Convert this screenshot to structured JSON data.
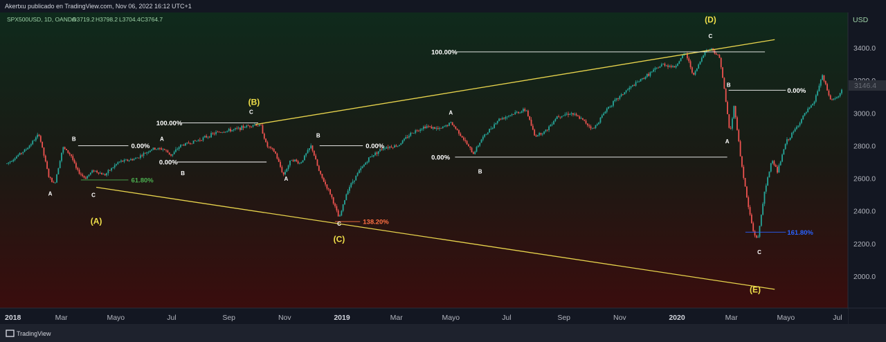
{
  "header": {
    "published": "Akertxu publicado en TradingView.com, Nov 06, 2022 16:12 UTC+1",
    "symbol": "SPX500USD, 1D, OANDA",
    "open": "O3719.2",
    "high": "H3798.2",
    "low": "L3704.4",
    "close": "C3764.7"
  },
  "price_axis": {
    "currency": "USD",
    "last_price": "3146.4"
  },
  "footer": {
    "brand": "TradingView"
  },
  "colors": {
    "up": "#26a69a",
    "down": "#ef5350",
    "wave_line": "#e8d44d",
    "fib_white": "#ffffff",
    "fib_green": "#4caf50",
    "fib_orange": "#ff7043",
    "fib_blue": "#2962ff"
  },
  "chart_data": {
    "type": "candlestick",
    "symbol": "SPX500USD",
    "interval": "1D",
    "source": "OANDA",
    "ylim": [
      1850,
      3560
    ],
    "y_ticks": [
      2000,
      2200,
      2400,
      2600,
      2800,
      3000,
      3200,
      3400
    ],
    "y_tick_labels": [
      "2000.0",
      "2200.0",
      "2400.0",
      "2600.0",
      "2800.0",
      "3000.0",
      "3200.0",
      "3400.0"
    ],
    "x_ticks": [
      {
        "label": "2018",
        "t": 0.0,
        "year": true
      },
      {
        "label": "Mar",
        "t": 1.95
      },
      {
        "label": "Mayo",
        "t": 3.9
      },
      {
        "label": "Jul",
        "t": 5.9
      },
      {
        "label": "Sep",
        "t": 7.95
      },
      {
        "label": "Nov",
        "t": 9.95
      },
      {
        "label": "2019",
        "t": 12.0,
        "year": true
      },
      {
        "label": "Mar",
        "t": 13.95
      },
      {
        "label": "Mayo",
        "t": 15.9
      },
      {
        "label": "Jul",
        "t": 17.9
      },
      {
        "label": "Sep",
        "t": 19.95
      },
      {
        "label": "Nov",
        "t": 21.95
      },
      {
        "label": "2020",
        "t": 24.0,
        "year": true
      },
      {
        "label": "Mar",
        "t": 25.95
      },
      {
        "label": "Mayo",
        "t": 27.9
      },
      {
        "label": "Jul",
        "t": 29.9
      }
    ],
    "price_path": [
      [
        0,
        2690
      ],
      [
        0.7,
        2780
      ],
      [
        1.15,
        2870
      ],
      [
        1.5,
        2610
      ],
      [
        1.7,
        2560
      ],
      [
        2.0,
        2790
      ],
      [
        2.3,
        2740
      ],
      [
        2.5,
        2650
      ],
      [
        2.8,
        2600
      ],
      [
        3.1,
        2650
      ],
      [
        3.5,
        2620
      ],
      [
        4.0,
        2700
      ],
      [
        4.6,
        2720
      ],
      [
        5.2,
        2780
      ],
      [
        5.6,
        2780
      ],
      [
        5.9,
        2740
      ],
      [
        6.2,
        2800
      ],
      [
        6.8,
        2830
      ],
      [
        7.5,
        2880
      ],
      [
        8.2,
        2900
      ],
      [
        8.6,
        2920
      ],
      [
        8.85,
        2930
      ],
      [
        9.1,
        2920
      ],
      [
        9.3,
        2800
      ],
      [
        9.6,
        2760
      ],
      [
        9.9,
        2620
      ],
      [
        10.2,
        2720
      ],
      [
        10.5,
        2690
      ],
      [
        10.9,
        2800
      ],
      [
        11.2,
        2630
      ],
      [
        11.6,
        2500
      ],
      [
        11.9,
        2350
      ],
      [
        12.2,
        2530
      ],
      [
        12.6,
        2640
      ],
      [
        13.0,
        2730
      ],
      [
        13.5,
        2790
      ],
      [
        14.0,
        2800
      ],
      [
        14.5,
        2880
      ],
      [
        15.0,
        2920
      ],
      [
        15.5,
        2900
      ],
      [
        15.9,
        2940
      ],
      [
        16.2,
        2880
      ],
      [
        16.7,
        2750
      ],
      [
        17.0,
        2840
      ],
      [
        17.6,
        2960
      ],
      [
        18.2,
        3000
      ],
      [
        18.6,
        3020
      ],
      [
        18.9,
        2860
      ],
      [
        19.3,
        2890
      ],
      [
        19.7,
        2980
      ],
      [
        20.2,
        3000
      ],
      [
        20.6,
        2960
      ],
      [
        21.0,
        2900
      ],
      [
        21.5,
        3030
      ],
      [
        22.2,
        3140
      ],
      [
        23.0,
        3240
      ],
      [
        23.5,
        3300
      ],
      [
        23.9,
        3280
      ],
      [
        24.3,
        3370
      ],
      [
        24.6,
        3230
      ],
      [
        25.0,
        3380
      ],
      [
        25.25,
        3395
      ],
      [
        25.55,
        3330
      ],
      [
        25.75,
        3070
      ],
      [
        25.9,
        2870
      ],
      [
        26.05,
        3050
      ],
      [
        26.3,
        2700
      ],
      [
        26.55,
        2430
      ],
      [
        26.75,
        2260
      ],
      [
        26.9,
        2230
      ],
      [
        27.1,
        2480
      ],
      [
        27.4,
        2720
      ],
      [
        27.6,
        2640
      ],
      [
        27.9,
        2820
      ],
      [
        28.2,
        2890
      ],
      [
        28.6,
        3000
      ],
      [
        28.9,
        3060
      ],
      [
        29.2,
        3230
      ],
      [
        29.5,
        3080
      ],
      [
        29.8,
        3100
      ],
      [
        30.0,
        3180
      ]
    ],
    "wave_labels": [
      {
        "text": "(A)",
        "t": 3.2,
        "p": 2320,
        "major": true
      },
      {
        "text": "(B)",
        "t": 8.85,
        "p": 3050,
        "major": true
      },
      {
        "text": "(C)",
        "t": 11.9,
        "p": 2210,
        "major": true
      },
      {
        "text": "(D)",
        "t": 25.2,
        "p": 3555,
        "major": true
      },
      {
        "text": "(E)",
        "t": 26.8,
        "p": 1900,
        "major": true
      },
      {
        "text": "A",
        "t": 1.55,
        "p": 2495
      },
      {
        "text": "B",
        "t": 2.4,
        "p": 2830
      },
      {
        "text": "C",
        "t": 3.1,
        "p": 2485
      },
      {
        "text": "A",
        "t": 5.55,
        "p": 2830
      },
      {
        "text": "B",
        "t": 6.3,
        "p": 2620
      },
      {
        "text": "C",
        "t": 8.75,
        "p": 2995
      },
      {
        "text": "A",
        "t": 10.0,
        "p": 2585
      },
      {
        "text": "B",
        "t": 11.15,
        "p": 2850
      },
      {
        "text": "C",
        "t": 11.9,
        "p": 2310
      },
      {
        "text": "A",
        "t": 15.9,
        "p": 2990
      },
      {
        "text": "B",
        "t": 16.95,
        "p": 2630
      },
      {
        "text": "C",
        "t": 25.2,
        "p": 3460
      },
      {
        "text": "B",
        "t": 25.85,
        "p": 3160
      },
      {
        "text": "A",
        "t": 25.8,
        "p": 2815
      },
      {
        "text": "C",
        "t": 26.95,
        "p": 2135
      }
    ],
    "trendlines": [
      {
        "name": "upper-trendline",
        "from": [
          8.9,
          2930
        ],
        "to": [
          27.5,
          3450
        ]
      },
      {
        "name": "lower-trendline",
        "from": [
          3.2,
          2545
        ],
        "to": [
          27.5,
          1920
        ]
      }
    ],
    "fib_levels": [
      {
        "label": "100.00%",
        "level": 2940,
        "from": 6.2,
        "to": 9.0,
        "text_t": 5.35,
        "color": "fib_white"
      },
      {
        "label": "0.00%",
        "level": 2800,
        "from": 2.55,
        "to": 4.35,
        "text_t": 4.45,
        "color": "fib_white"
      },
      {
        "label": "0.00%",
        "level": 2700,
        "from": 6.1,
        "to": 9.3,
        "text_t": 5.45,
        "color": "fib_white"
      },
      {
        "label": "61.80%",
        "level": 2590,
        "from": 2.65,
        "to": 4.35,
        "text_t": 4.45,
        "color": "fib_green"
      },
      {
        "label": "0.00%",
        "level": 2800,
        "from": 11.2,
        "to": 12.75,
        "text_t": 12.85,
        "color": "fib_white"
      },
      {
        "label": "138.20%",
        "level": 2335,
        "from": 11.75,
        "to": 12.65,
        "text_t": 12.75,
        "color": "fib_orange"
      },
      {
        "label": "100.00%",
        "level": 3375,
        "from": 16.05,
        "to": 27.15,
        "text_t": 15.2,
        "color": "fib_white"
      },
      {
        "label": "0.00%",
        "level": 2730,
        "from": 16.05,
        "to": 25.8,
        "text_t": 15.2,
        "color": "fib_white"
      },
      {
        "label": "0.00%",
        "level": 3140,
        "from": 25.85,
        "to": 27.9,
        "text_t": 27.95,
        "color": "fib_white"
      },
      {
        "label": "161.80%",
        "level": 2270,
        "from": 26.45,
        "to": 27.9,
        "text_t": 27.95,
        "color": "fib_blue"
      }
    ]
  }
}
